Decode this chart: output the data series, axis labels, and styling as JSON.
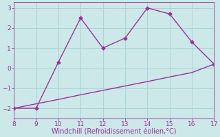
{
  "x": [
    8,
    9,
    10,
    11,
    12,
    13,
    14,
    15,
    16,
    17
  ],
  "y_line": [
    -2,
    -2,
    0.3,
    2.5,
    1.0,
    1.5,
    3.0,
    2.7,
    1.3,
    0.2
  ],
  "y_smooth": [
    -2.0,
    -1.78,
    -1.56,
    -1.33,
    -1.11,
    -0.89,
    -0.67,
    -0.44,
    -0.22,
    0.2
  ],
  "xlim": [
    8,
    17
  ],
  "ylim": [
    -2.5,
    3.3
  ],
  "yticks": [
    -2,
    -1,
    0,
    1,
    2,
    3
  ],
  "xticks": [
    8,
    9,
    10,
    11,
    12,
    13,
    14,
    15,
    16,
    17
  ],
  "xlabel": "Windchill (Refroidissement éolien,°C)",
  "line_color": "#993399",
  "bg_color": "#cce8e8",
  "grid_color": "#aad4d4",
  "marker": "D",
  "markersize": 2.5,
  "linewidth": 1.0,
  "xlabel_fontsize": 7.0,
  "tick_fontsize": 6.5,
  "xlabel_color": "#993399",
  "tick_color": "#993399"
}
